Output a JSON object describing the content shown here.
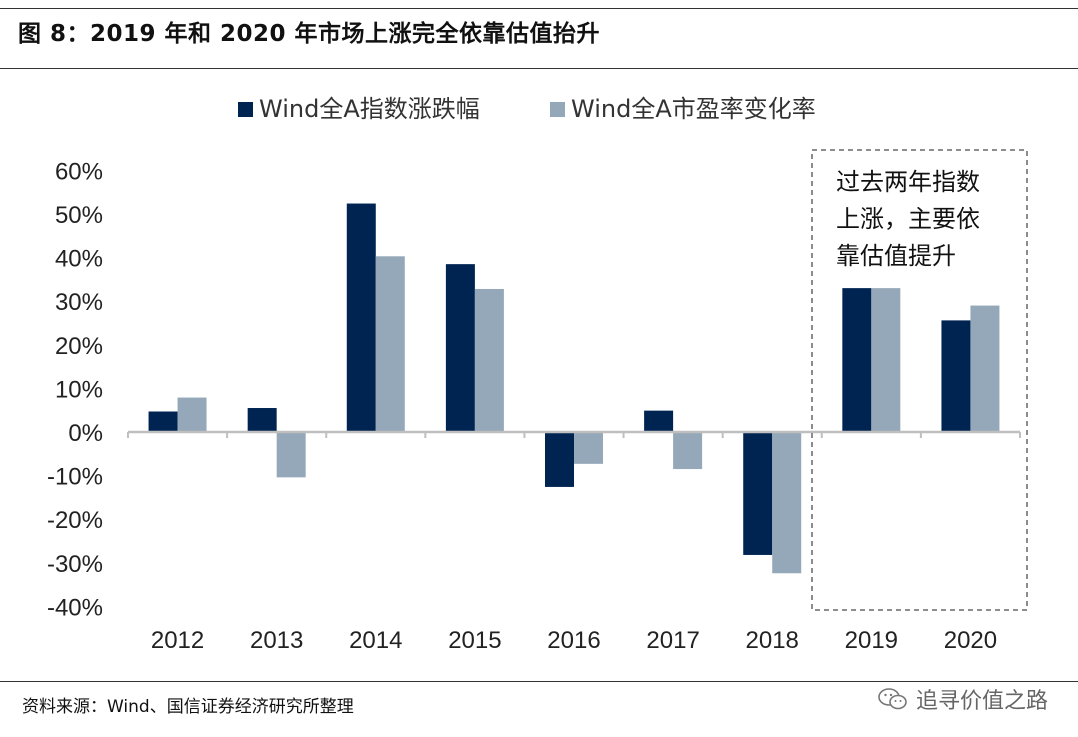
{
  "title": "图 8：2019 年和 2020 年市场上涨完全依靠估值抬升",
  "source": "资料来源：Wind、国信证券经济研究所整理",
  "watermark": "追寻价值之路",
  "colors": {
    "series1": "#002452",
    "series2": "#95a8b9",
    "axis": "#bfbfbf",
    "box": "#7f7f7f"
  },
  "chart_data": {
    "type": "bar",
    "categories": [
      "2012",
      "2013",
      "2014",
      "2015",
      "2016",
      "2017",
      "2018",
      "2019",
      "2020"
    ],
    "series": [
      {
        "name": "Wind全A指数涨跌幅",
        "values": [
          4.7,
          5.5,
          52.4,
          38.5,
          -12.6,
          4.9,
          -28.2,
          33.0,
          25.6
        ]
      },
      {
        "name": "Wind全A市盈率变化率",
        "values": [
          7.9,
          -10.4,
          40.3,
          32.8,
          -7.3,
          -8.5,
          -32.4,
          33.0,
          29.0
        ]
      }
    ],
    "ylim": [
      -40,
      60
    ],
    "yticks": [
      60,
      50,
      40,
      30,
      20,
      10,
      0,
      -10,
      -20,
      -30,
      -40
    ],
    "ytick_labels": [
      "60%",
      "50%",
      "40%",
      "30%",
      "20%",
      "10%",
      "0%",
      "-10%",
      "-20%",
      "-30%",
      "-40%"
    ],
    "legend": "top",
    "grid": false,
    "annotation": {
      "lines": [
        "过去两年指数",
        "上涨，主要依",
        "靠估值提升"
      ],
      "covers": [
        "2019",
        "2020"
      ]
    }
  }
}
